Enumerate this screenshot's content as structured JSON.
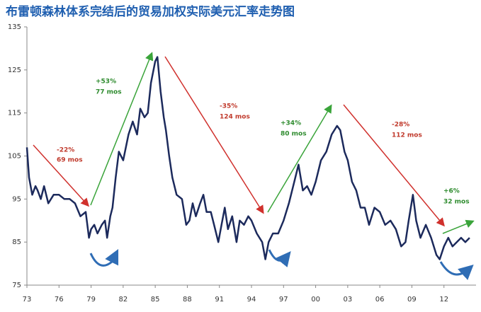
{
  "chart_data": {
    "type": "line",
    "title": "布雷顿森林体系完结后的贸易加权实际美元汇率走势图",
    "color": "#1c2a5c",
    "x": [
      1973.0,
      1973.2,
      1973.5,
      1973.8,
      1974.0,
      1974.3,
      1974.6,
      1975.0,
      1975.5,
      1976.0,
      1976.5,
      1977.0,
      1977.5,
      1978.0,
      1978.5,
      1978.8,
      1979.0,
      1979.3,
      1979.6,
      1980.0,
      1980.3,
      1980.5,
      1980.8,
      1981.0,
      1981.3,
      1981.6,
      1982.0,
      1982.5,
      1982.9,
      1983.3,
      1983.6,
      1984.0,
      1984.3,
      1984.6,
      1985.0,
      1985.2,
      1985.5,
      1985.8,
      1986.0,
      1986.3,
      1986.6,
      1987.0,
      1987.5,
      1987.9,
      1988.2,
      1988.5,
      1988.8,
      1989.2,
      1989.5,
      1989.8,
      1990.2,
      1990.5,
      1990.9,
      1991.2,
      1991.5,
      1991.8,
      1992.2,
      1992.6,
      1992.9,
      1993.3,
      1993.7,
      1994.0,
      1994.5,
      1995.0,
      1995.3,
      1995.6,
      1996.0,
      1996.5,
      1997.0,
      1997.5,
      1998.0,
      1998.4,
      1998.8,
      1999.2,
      1999.6,
      2000.0,
      2000.5,
      2001.0,
      2001.5,
      2002.0,
      2002.3,
      2002.7,
      2003.0,
      2003.4,
      2003.8,
      2004.2,
      2004.6,
      2005.0,
      2005.5,
      2006.0,
      2006.5,
      2007.0,
      2007.5,
      2008.0,
      2008.4,
      2008.7,
      2009.1,
      2009.4,
      2009.8,
      2010.3,
      2010.8,
      2011.3,
      2011.6,
      2012.0,
      2012.4,
      2012.8,
      2013.2,
      2013.6,
      2014.0,
      2014.4
    ],
    "values": [
      107,
      100,
      96,
      98,
      97,
      95,
      98,
      94,
      96,
      96,
      95,
      95,
      94,
      91,
      92,
      86,
      88,
      89,
      87,
      89,
      90,
      86,
      91,
      93,
      100,
      106,
      104,
      110,
      113,
      110,
      116,
      114,
      115,
      122,
      127,
      128,
      120,
      114,
      111,
      105,
      100,
      96,
      95,
      89,
      90,
      94,
      91,
      94,
      96,
      92,
      92,
      89,
      85,
      89,
      93,
      88,
      91,
      85,
      90,
      89,
      91,
      90,
      87,
      85,
      81,
      85,
      87,
      87,
      90,
      94,
      99,
      103,
      97,
      98,
      96,
      99,
      104,
      106,
      110,
      112,
      111,
      106,
      104,
      99,
      97,
      93,
      93,
      89,
      93,
      92,
      89,
      90,
      88,
      84,
      85,
      90,
      96,
      90,
      86,
      89,
      86,
      82,
      81,
      84,
      86,
      84,
      85,
      86,
      85,
      86
    ],
    "xlim": [
      1973,
      2015
    ],
    "ylim": [
      75,
      135
    ],
    "yticks": [
      75,
      85,
      95,
      105,
      115,
      125,
      135
    ],
    "xticks": [
      {
        "value": 1973,
        "label": "73"
      },
      {
        "value": 1976,
        "label": "76"
      },
      {
        "value": 1979,
        "label": "79"
      },
      {
        "value": 1982,
        "label": "82"
      },
      {
        "value": 1985,
        "label": "85"
      },
      {
        "value": 1988,
        "label": "88"
      },
      {
        "value": 1991,
        "label": "91"
      },
      {
        "value": 1994,
        "label": "94"
      },
      {
        "value": 1997,
        "label": "97"
      },
      {
        "value": 2000,
        "label": "00"
      },
      {
        "value": 2003,
        "label": "03"
      },
      {
        "value": 2006,
        "label": "06"
      },
      {
        "value": 2009,
        "label": "09"
      },
      {
        "value": 2012,
        "label": "12"
      }
    ],
    "annotations": [
      "-22%",
      "69 mos",
      "+53%",
      "77 mos",
      "-35%",
      "124 mos",
      "+34%",
      "80 mos",
      "-28%",
      "112 mos",
      "+6%",
      "32 mos"
    ]
  }
}
